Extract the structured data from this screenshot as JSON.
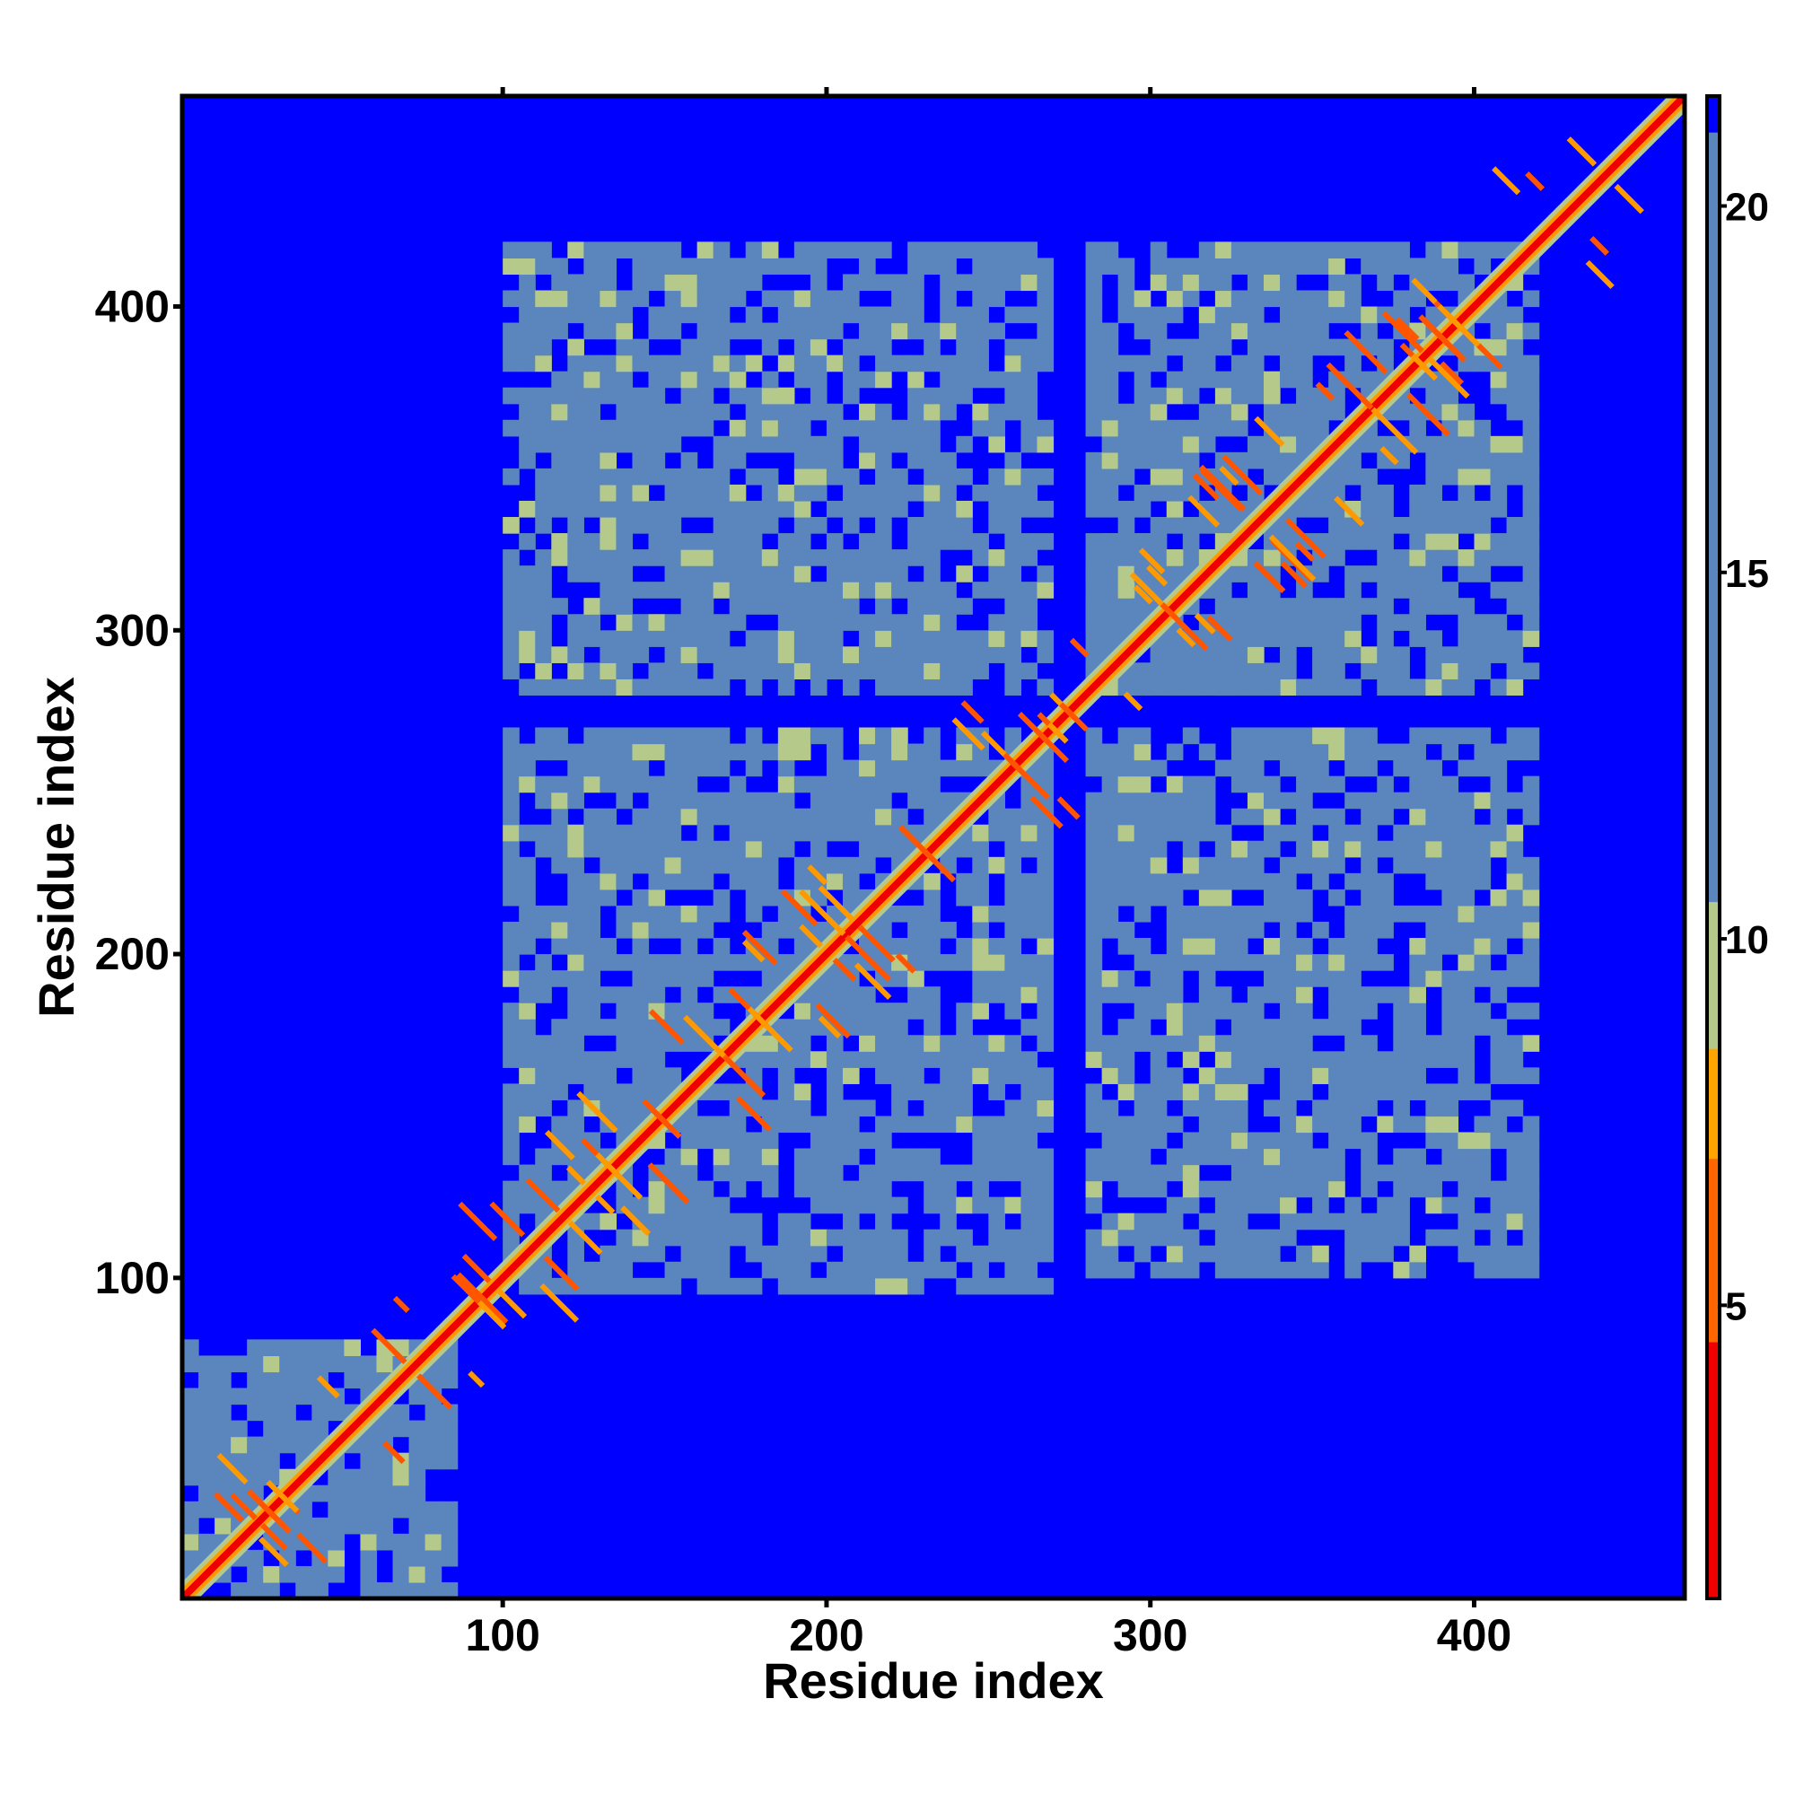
{
  "chart_data": {
    "type": "heatmap",
    "title": "",
    "xlabel": "Residue index",
    "ylabel": "Residue index",
    "xlim": [
      1,
      465
    ],
    "ylim": [
      1,
      465
    ],
    "x_ticks": [
      100,
      200,
      300,
      400
    ],
    "y_ticks": [
      100,
      200,
      300,
      400
    ],
    "colorbar": {
      "ticks": [
        5,
        10,
        15,
        20
      ],
      "range": [
        1,
        21.5
      ],
      "colors": {
        "near": "#ee0000",
        "mid": "#ff9900",
        "light": "#b4c98a",
        "far": "#5a86bd",
        "background": "#0000ff"
      },
      "bands": [
        {
          "from": 1,
          "to": 4.5,
          "color": "#ee0000"
        },
        {
          "from": 4.5,
          "to": 7,
          "color": "#ff6600"
        },
        {
          "from": 7,
          "to": 8.5,
          "color": "#ffa500"
        },
        {
          "from": 8.5,
          "to": 10.5,
          "color": "#b4c98a"
        },
        {
          "from": 10.5,
          "to": 21,
          "color": "#5a86bd"
        },
        {
          "from": 21,
          "to": 21.5,
          "color": "#0000ff"
        }
      ]
    },
    "contact_blocks": [
      {
        "x": [
          1,
          85
        ],
        "y": [
          1,
          80
        ]
      },
      {
        "x": [
          100,
          270
        ],
        "y": [
          95,
          270
        ]
      },
      {
        "x": [
          280,
          420
        ],
        "y": [
          280,
          420
        ]
      },
      {
        "x": [
          100,
          270
        ],
        "y": [
          280,
          420
        ]
      },
      {
        "x": [
          280,
          420
        ],
        "y": [
          100,
          270
        ]
      },
      {
        "x": [
          280,
          340
        ],
        "y": [
          280,
          330
        ]
      }
    ],
    "diagonal": {
      "from": 1,
      "to": 465
    }
  }
}
